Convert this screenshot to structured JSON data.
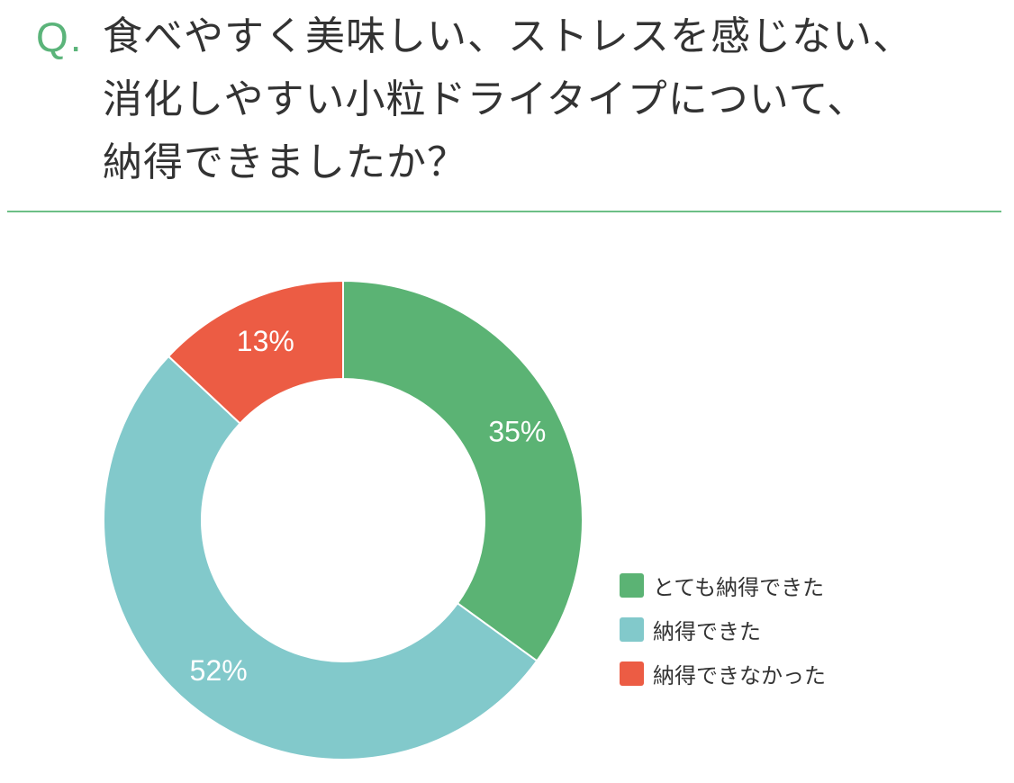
{
  "question": {
    "marker": "Q.",
    "lines": [
      "食べやすく美味しい、ストレスを感じない、",
      "消化しやすい小粒ドライタイプについて、",
      "納得できましたか？"
    ]
  },
  "colors": {
    "accent": "#5bb47a",
    "divider": "#6cbf86"
  },
  "chart_data": {
    "type": "pie",
    "donut": true,
    "start_angle_deg": 0,
    "direction": "clockwise",
    "series": [
      {
        "name": "とても納得できた",
        "value": 35,
        "label": "35%",
        "color": "#5bb374"
      },
      {
        "name": "納得できた",
        "value": 52,
        "label": "52%",
        "color": "#82c9cb"
      },
      {
        "name": "納得できなかった",
        "value": 13,
        "label": "13%",
        "color": "#ec5c44"
      }
    ],
    "legend_position": "right-bottom"
  }
}
